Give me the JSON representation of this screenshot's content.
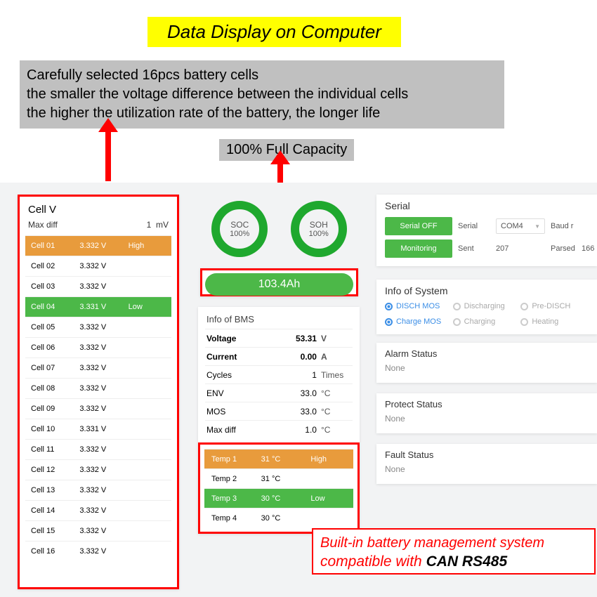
{
  "title": "Data Display on Computer",
  "info_box": {
    "line1": "Carefully selected 16pcs battery cells",
    "line2": "the smaller the voltage difference between the individual cells",
    "line3": "the higher the utilization rate of the battery, the longer life"
  },
  "capacity_label": "100% Full Capacity",
  "colors": {
    "highlight_yellow": "#ffff00",
    "info_bg": "#c0c0c0",
    "arrow_red": "#ff0000",
    "green": "#4cb848",
    "orange": "#e89b3c",
    "ring_green": "#1fa82e",
    "blue": "#3b8ee6",
    "app_bg": "#f2f3f4"
  },
  "cellv": {
    "title": "Cell V",
    "diff_label": "Max diff",
    "diff_value": "1",
    "diff_unit": "mV",
    "rows": [
      {
        "name": "Cell 01",
        "v": "3.332 V",
        "tag": "High",
        "cls": "row-orange"
      },
      {
        "name": "Cell 02",
        "v": "3.332 V",
        "tag": "",
        "cls": ""
      },
      {
        "name": "Cell 03",
        "v": "3.332 V",
        "tag": "",
        "cls": ""
      },
      {
        "name": "Cell 04",
        "v": "3.331 V",
        "tag": "Low",
        "cls": "row-green"
      },
      {
        "name": "Cell 05",
        "v": "3.332 V",
        "tag": "",
        "cls": ""
      },
      {
        "name": "Cell 06",
        "v": "3.332 V",
        "tag": "",
        "cls": ""
      },
      {
        "name": "Cell 07",
        "v": "3.332 V",
        "tag": "",
        "cls": ""
      },
      {
        "name": "Cell 08",
        "v": "3.332 V",
        "tag": "",
        "cls": ""
      },
      {
        "name": "Cell 09",
        "v": "3.332 V",
        "tag": "",
        "cls": ""
      },
      {
        "name": "Cell 10",
        "v": "3.331 V",
        "tag": "",
        "cls": ""
      },
      {
        "name": "Cell 11",
        "v": "3.332 V",
        "tag": "",
        "cls": ""
      },
      {
        "name": "Cell 12",
        "v": "3.332 V",
        "tag": "",
        "cls": ""
      },
      {
        "name": "Cell 13",
        "v": "3.332 V",
        "tag": "",
        "cls": ""
      },
      {
        "name": "Cell 14",
        "v": "3.332 V",
        "tag": "",
        "cls": ""
      },
      {
        "name": "Cell 15",
        "v": "3.332 V",
        "tag": "",
        "cls": ""
      },
      {
        "name": "Cell 16",
        "v": "3.332 V",
        "tag": "",
        "cls": ""
      }
    ]
  },
  "gauges": {
    "soc": {
      "label": "SOC",
      "value": "100%"
    },
    "soh": {
      "label": "SOH",
      "value": "100%"
    }
  },
  "capacity_bar": "103.4Ah",
  "bms": {
    "title": "Info of BMS",
    "rows": [
      {
        "k": "Voltage",
        "v": "53.31",
        "u": "V",
        "bold": true
      },
      {
        "k": "Current",
        "v": "0.00",
        "u": "A",
        "bold": true
      },
      {
        "k": "Cycles",
        "v": "1",
        "u": "Times",
        "bold": false
      },
      {
        "k": "ENV",
        "v": "33.0",
        "u": "°C",
        "bold": false
      },
      {
        "k": "MOS",
        "v": "33.0",
        "u": "°C",
        "bold": false
      },
      {
        "k": "Max diff",
        "v": "1.0",
        "u": "°C",
        "bold": false
      }
    ]
  },
  "temp": {
    "rows": [
      {
        "name": "Temp 1",
        "v": "31 °C",
        "tag": "High",
        "cls": "row-orange"
      },
      {
        "name": "Temp 2",
        "v": "31 °C",
        "tag": "",
        "cls": ""
      },
      {
        "name": "Temp 3",
        "v": "30 °C",
        "tag": "Low",
        "cls": "row-green"
      },
      {
        "name": "Temp 4",
        "v": "30 °C",
        "tag": "",
        "cls": ""
      }
    ]
  },
  "serial": {
    "title": "Serial",
    "btn_off": "Serial OFF",
    "btn_mon": "Monitoring",
    "lbl_serial": "Serial",
    "sel_serial": "COM4",
    "lbl_baud": "Baud r",
    "lbl_sent": "Sent",
    "val_sent": "207",
    "lbl_parsed": "Parsed",
    "val_parsed": "166"
  },
  "sys": {
    "title": "Info of System",
    "items": [
      {
        "label": "DISCH MOS",
        "on": true
      },
      {
        "label": "Discharging",
        "on": false
      },
      {
        "label": "Pre-DISCH",
        "on": false
      },
      {
        "label": "Charge MOS",
        "on": true
      },
      {
        "label": "Charging",
        "on": false
      },
      {
        "label": "Heating",
        "on": false
      }
    ]
  },
  "alarm": {
    "title": "Alarm Status",
    "value": "None"
  },
  "protect": {
    "title": "Protect Status",
    "value": "None"
  },
  "fault": {
    "title": "Fault Status",
    "value": "None"
  },
  "note": {
    "line1": "Built-in battery management system",
    "line2a": "compatible with ",
    "line2b": "CAN RS485"
  }
}
